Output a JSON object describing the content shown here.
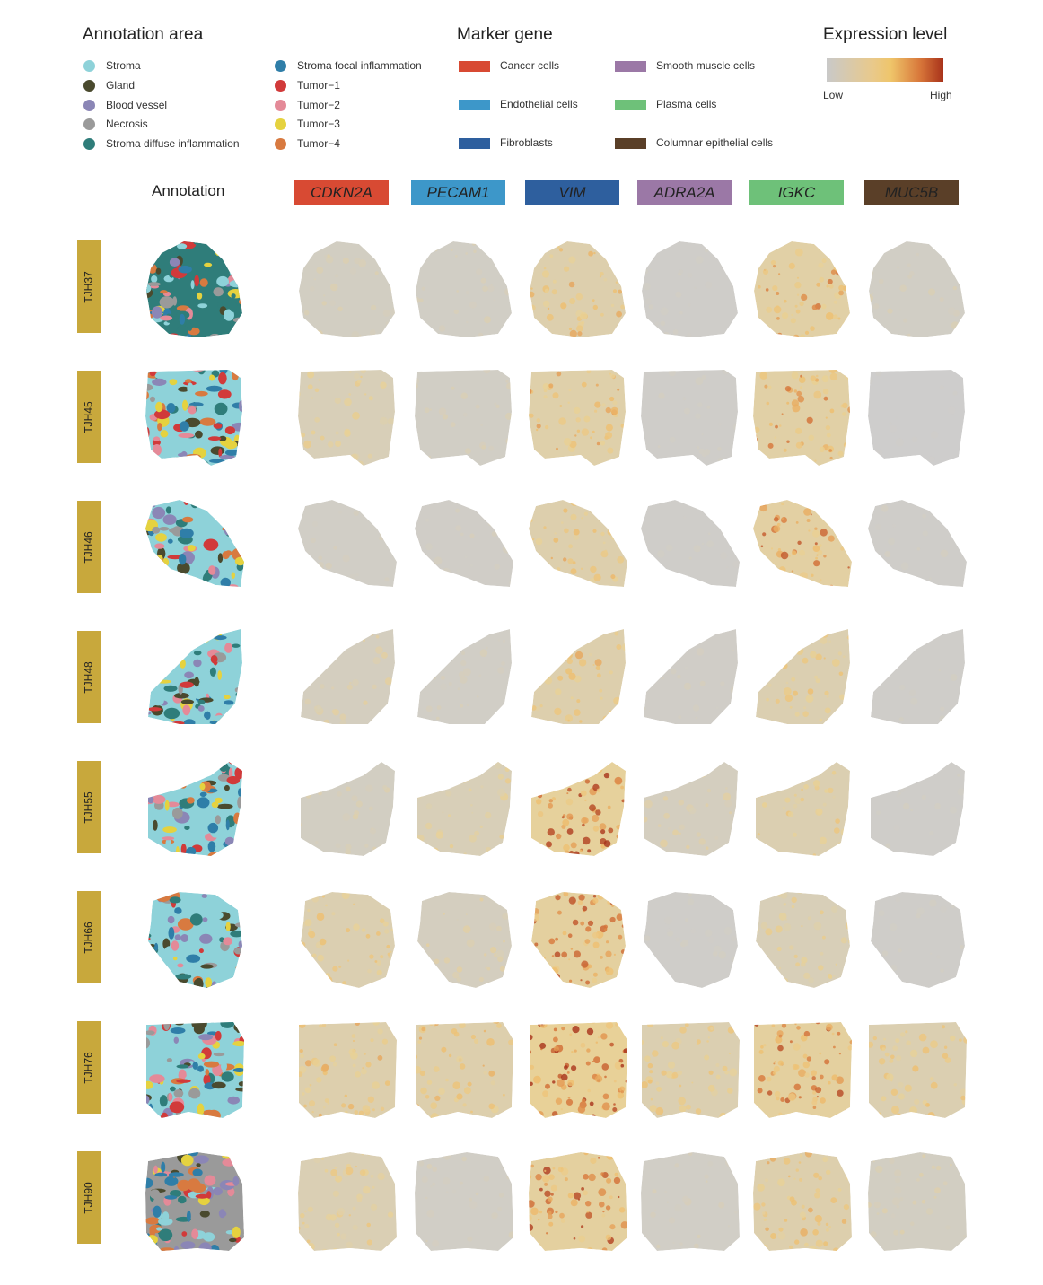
{
  "annotation_legend": {
    "title": "Annotation area",
    "items": [
      {
        "label": "Stroma",
        "color": "#8ed2d9"
      },
      {
        "label": "Gland",
        "color": "#4a4a2e"
      },
      {
        "label": "Blood vessel",
        "color": "#8b86b6"
      },
      {
        "label": "Necrosis",
        "color": "#9a9a9a"
      },
      {
        "label": "Stroma diffuse inflammation",
        "color": "#2f7d7a"
      },
      {
        "label": "Stroma focal inflammation",
        "color": "#2f7ea8"
      },
      {
        "label": "Tumor−1",
        "color": "#d13a3a"
      },
      {
        "label": "Tumor−2",
        "color": "#e48a98"
      },
      {
        "label": "Tumor−3",
        "color": "#e5d23f"
      },
      {
        "label": "Tumor−4",
        "color": "#d87a40"
      }
    ]
  },
  "marker_legend": {
    "title": "Marker gene",
    "items": [
      {
        "label": "Cancer cells",
        "color": "#d84a33"
      },
      {
        "label": "Endothelial cells",
        "color": "#3d97c9"
      },
      {
        "label": "Fibroblasts",
        "color": "#2e5f9e"
      },
      {
        "label": "Smooth muscle cells",
        "color": "#9b78a6"
      },
      {
        "label": "Plasma cells",
        "color": "#6ec179"
      },
      {
        "label": "Columnar epithelial cells",
        "color": "#5a3f28"
      }
    ]
  },
  "expression_legend": {
    "title": "Expression level",
    "low": "Low",
    "high": "High"
  },
  "header": {
    "annotation": "Annotation",
    "genes": [
      {
        "label": "CDKN2A",
        "color": "#d84a33"
      },
      {
        "label": "PECAM1",
        "color": "#3d97c9"
      },
      {
        "label": "VIM",
        "color": "#2e5f9e"
      },
      {
        "label": "ADRA2A",
        "color": "#9b78a6"
      },
      {
        "label": "IGKC",
        "color": "#6ec179"
      },
      {
        "label": "MUC5B",
        "color": "#5a3f28"
      }
    ]
  },
  "samples": [
    {
      "id": "TJH37",
      "levels": [
        0.15,
        0.12,
        0.45,
        0.05,
        0.55,
        0.12
      ]
    },
    {
      "id": "TJH45",
      "levels": [
        0.3,
        0.12,
        0.5,
        0.05,
        0.55,
        0.02
      ]
    },
    {
      "id": "TJH46",
      "levels": [
        0.1,
        0.08,
        0.45,
        0.05,
        0.6,
        0.05
      ]
    },
    {
      "id": "TJH48",
      "levels": [
        0.2,
        0.1,
        0.45,
        0.08,
        0.4,
        0.05
      ]
    },
    {
      "id": "TJH55",
      "levels": [
        0.15,
        0.3,
        0.7,
        0.2,
        0.4,
        0.05
      ]
    },
    {
      "id": "TJH66",
      "levels": [
        0.4,
        0.2,
        0.65,
        0.05,
        0.3,
        0.05
      ]
    },
    {
      "id": "TJH76",
      "levels": [
        0.45,
        0.45,
        0.75,
        0.4,
        0.65,
        0.4
      ]
    },
    {
      "id": "TJH90",
      "levels": [
        0.35,
        0.1,
        0.65,
        0.1,
        0.45,
        0.15
      ]
    }
  ]
}
